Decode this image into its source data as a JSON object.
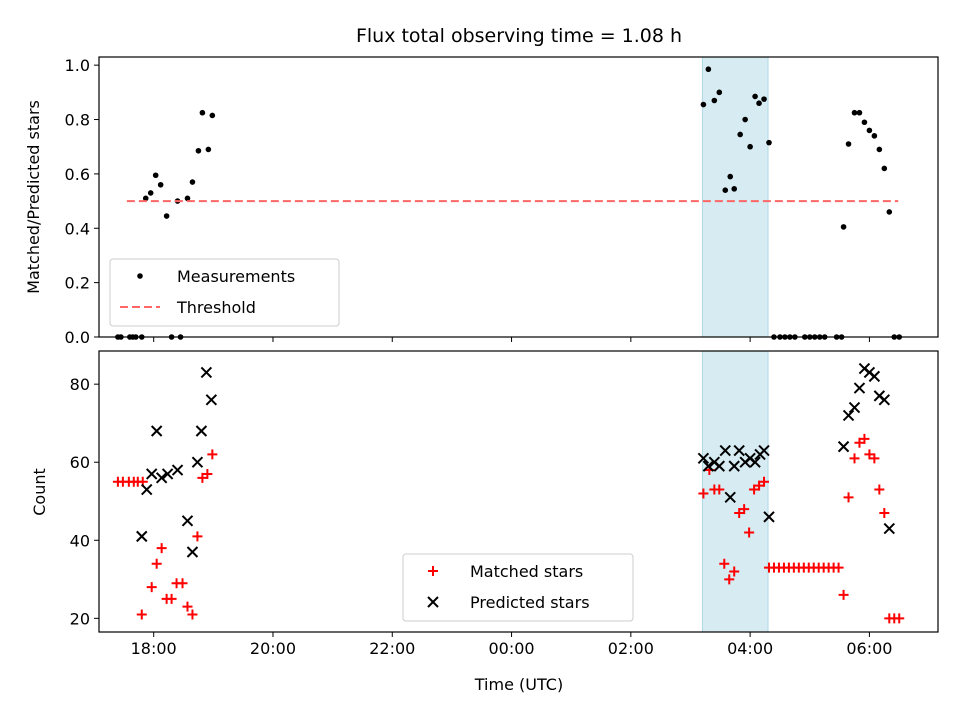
{
  "chart_data": {
    "title": "Flux total observing time = 1.08 h",
    "xlabel": "Time (UTC)",
    "x_tick_labels": [
      "18:00",
      "20:00",
      "22:00",
      "00:00",
      "02:00",
      "04:00",
      "06:00"
    ],
    "shaded_span": {
      "start": "03:12",
      "end": "04:18",
      "color": "#add8e6"
    },
    "panels": [
      {
        "type": "scatter",
        "ylabel": "Matched/Predicted stars",
        "ylim": [
          0.0,
          1.03
        ],
        "yticks": [
          "0.0",
          "0.2",
          "0.4",
          "0.6",
          "0.8",
          "1.0"
        ],
        "legend_position": "lower-left",
        "series": [
          {
            "name": "Measurements",
            "marker": "dot",
            "color": "#000000",
            "points": [
              [
                "17:24",
                0.0
              ],
              [
                "17:27",
                0.0
              ],
              [
                "17:36",
                0.0
              ],
              [
                "17:39",
                0.0
              ],
              [
                "17:42",
                0.0
              ],
              [
                "17:48",
                0.0
              ],
              [
                "18:18",
                0.0
              ],
              [
                "18:27",
                0.0
              ],
              [
                "17:52",
                0.51
              ],
              [
                "17:57",
                0.53
              ],
              [
                "18:02",
                0.595
              ],
              [
                "18:07",
                0.56
              ],
              [
                "18:13",
                0.445
              ],
              [
                "18:24",
                0.5
              ],
              [
                "18:34",
                0.51
              ],
              [
                "18:39",
                0.57
              ],
              [
                "18:45",
                0.685
              ],
              [
                "18:49",
                0.825
              ],
              [
                "18:55",
                0.69
              ],
              [
                "18:59",
                0.815
              ],
              [
                "03:13",
                0.855
              ],
              [
                "03:18",
                0.985
              ],
              [
                "03:24",
                0.87
              ],
              [
                "03:29",
                0.9
              ],
              [
                "03:35",
                0.54
              ],
              [
                "03:40",
                0.59
              ],
              [
                "03:44",
                0.545
              ],
              [
                "03:50",
                0.745
              ],
              [
                "03:55",
                0.8
              ],
              [
                "04:00",
                0.7
              ],
              [
                "04:05",
                0.885
              ],
              [
                "04:09",
                0.86
              ],
              [
                "04:14",
                0.875
              ],
              [
                "04:19",
                0.715
              ],
              [
                "04:24",
                0.0
              ],
              [
                "04:30",
                0.0
              ],
              [
                "04:35",
                0.0
              ],
              [
                "04:40",
                0.0
              ],
              [
                "04:45",
                0.0
              ],
              [
                "04:55",
                0.0
              ],
              [
                "05:00",
                0.0
              ],
              [
                "05:05",
                0.0
              ],
              [
                "05:10",
                0.0
              ],
              [
                "05:15",
                0.0
              ],
              [
                "05:27",
                0.0
              ],
              [
                "05:32",
                0.0
              ],
              [
                "05:34",
                0.405
              ],
              [
                "05:39",
                0.71
              ],
              [
                "05:45",
                0.825
              ],
              [
                "05:50",
                0.825
              ],
              [
                "05:55",
                0.79
              ],
              [
                "06:00",
                0.76
              ],
              [
                "06:05",
                0.74
              ],
              [
                "06:10",
                0.69
              ],
              [
                "06:15",
                0.62
              ],
              [
                "06:20",
                0.46
              ],
              [
                "06:25",
                0.0
              ],
              [
                "06:30",
                0.0
              ]
            ]
          },
          {
            "name": "Threshold",
            "type": "line",
            "style": "dashed",
            "color": "#ff6666",
            "points": [
              [
                "17:33",
                0.5
              ],
              [
                "06:29",
                0.5
              ]
            ]
          }
        ]
      },
      {
        "type": "scatter",
        "ylabel": "Count",
        "ylim": [
          16.5,
          88.5
        ],
        "yticks": [
          "20",
          "40",
          "60",
          "80"
        ],
        "legend_position": "lower-center",
        "series": [
          {
            "name": "Matched stars",
            "marker": "plus",
            "color": "#ff0000",
            "points": [
              [
                "17:24",
                55
              ],
              [
                "17:29",
                55
              ],
              [
                "17:35",
                55
              ],
              [
                "17:40",
                55
              ],
              [
                "17:44",
                55
              ],
              [
                "17:49",
                55
              ],
              [
                "17:48",
                21
              ],
              [
                "17:58",
                28
              ],
              [
                "18:03",
                34
              ],
              [
                "18:08",
                38
              ],
              [
                "18:13",
                25
              ],
              [
                "18:18",
                25
              ],
              [
                "18:23",
                29
              ],
              [
                "18:29",
                29
              ],
              [
                "18:34",
                23
              ],
              [
                "18:39",
                21
              ],
              [
                "18:44",
                41
              ],
              [
                "18:49",
                56
              ],
              [
                "18:54",
                57
              ],
              [
                "18:59",
                62
              ],
              [
                "03:13",
                52
              ],
              [
                "03:19",
                58
              ],
              [
                "03:24",
                53
              ],
              [
                "03:29",
                53
              ],
              [
                "03:34",
                34
              ],
              [
                "03:39",
                30
              ],
              [
                "03:44",
                32
              ],
              [
                "03:49",
                47
              ],
              [
                "03:54",
                48
              ],
              [
                "03:59",
                42
              ],
              [
                "04:04",
                53
              ],
              [
                "04:09",
                54
              ],
              [
                "04:14",
                55
              ],
              [
                "04:19",
                33
              ],
              [
                "04:24",
                33
              ],
              [
                "04:29",
                33
              ],
              [
                "04:34",
                33
              ],
              [
                "04:39",
                33
              ],
              [
                "04:44",
                33
              ],
              [
                "04:49",
                33
              ],
              [
                "04:54",
                33
              ],
              [
                "04:59",
                33
              ],
              [
                "05:04",
                33
              ],
              [
                "05:09",
                33
              ],
              [
                "05:14",
                33
              ],
              [
                "05:19",
                33
              ],
              [
                "05:24",
                33
              ],
              [
                "05:29",
                33
              ],
              [
                "05:34",
                26
              ],
              [
                "05:39",
                51
              ],
              [
                "05:45",
                61
              ],
              [
                "05:50",
                65
              ],
              [
                "05:55",
                66
              ],
              [
                "06:00",
                62
              ],
              [
                "06:05",
                61
              ],
              [
                "06:10",
                53
              ],
              [
                "06:15",
                47
              ],
              [
                "06:20",
                20
              ],
              [
                "06:25",
                20
              ],
              [
                "06:30",
                20
              ]
            ]
          },
          {
            "name": "Predicted stars",
            "marker": "x",
            "color": "#000000",
            "points": [
              [
                "17:48",
                41
              ],
              [
                "17:53",
                53
              ],
              [
                "17:58",
                57
              ],
              [
                "18:03",
                68
              ],
              [
                "18:08",
                56
              ],
              [
                "18:14",
                57
              ],
              [
                "18:24",
                58
              ],
              [
                "18:34",
                45
              ],
              [
                "18:39",
                37
              ],
              [
                "18:44",
                60
              ],
              [
                "18:48",
                68
              ],
              [
                "18:53",
                83
              ],
              [
                "18:58",
                76
              ],
              [
                "03:13",
                61
              ],
              [
                "03:18",
                59
              ],
              [
                "03:24",
                60
              ],
              [
                "03:29",
                59
              ],
              [
                "03:35",
                63
              ],
              [
                "03:40",
                51
              ],
              [
                "03:44",
                59
              ],
              [
                "03:49",
                63
              ],
              [
                "03:55",
                60
              ],
              [
                "04:00",
                61
              ],
              [
                "04:05",
                60
              ],
              [
                "04:10",
                62
              ],
              [
                "04:14",
                63
              ],
              [
                "04:19",
                46
              ],
              [
                "05:34",
                64
              ],
              [
                "05:39",
                72
              ],
              [
                "05:45",
                74
              ],
              [
                "05:50",
                79
              ],
              [
                "05:55",
                84
              ],
              [
                "06:00",
                83
              ],
              [
                "06:05",
                82
              ],
              [
                "06:10",
                77
              ],
              [
                "06:15",
                76
              ],
              [
                "06:20",
                43
              ]
            ]
          }
        ]
      }
    ]
  }
}
